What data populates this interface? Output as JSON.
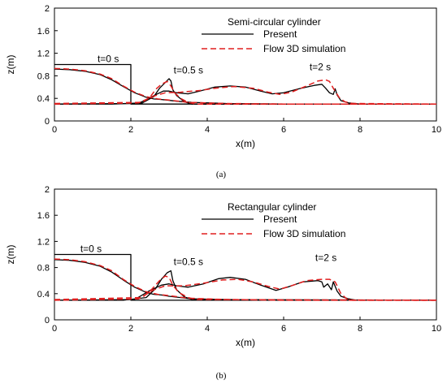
{
  "colors": {
    "present": "#000000",
    "flow3d": "#e01e1e",
    "axis": "#000000"
  },
  "chart_data": [
    {
      "type": "line",
      "caption": "(a)",
      "legend_title": "Semi-circular cylinder",
      "xlabel": "x(m)",
      "ylabel": "z(m)",
      "xlim": [
        0,
        10
      ],
      "ylim": [
        0,
        2
      ],
      "xticks": [
        "0",
        "2",
        "4",
        "6",
        "8",
        "10"
      ],
      "yticks": [
        "0",
        "0.4",
        "0.8",
        "1.2",
        "1.6",
        "2"
      ],
      "legend_placement": "top-right",
      "annotations": [
        {
          "text": "t=0 s",
          "x": 1.45,
          "y": 1.04
        },
        {
          "text": "t=0.5 s",
          "x": 3.55,
          "y": 0.84
        },
        {
          "text": "t=2 s",
          "x": 7.0,
          "y": 0.9
        }
      ],
      "series": [
        {
          "name": "Present",
          "style": "solid",
          "curves": [
            [
              [
                0,
                1.0
              ],
              [
                2,
                1.0
              ],
              [
                2,
                0.3
              ],
              [
                10,
                0.3
              ]
            ],
            [
              [
                0,
                0.92
              ],
              [
                0.4,
                0.91
              ],
              [
                0.8,
                0.88
              ],
              [
                1.2,
                0.82
              ],
              [
                1.5,
                0.73
              ],
              [
                1.8,
                0.61
              ],
              [
                2.1,
                0.5
              ],
              [
                2.4,
                0.42
              ],
              [
                2.6,
                0.39
              ],
              [
                2.8,
                0.38
              ],
              [
                2.95,
                0.37
              ],
              [
                3.2,
                0.35
              ],
              [
                3.6,
                0.33
              ],
              [
                4.5,
                0.31
              ],
              [
                6,
                0.3
              ],
              [
                10,
                0.3
              ]
            ],
            [
              [
                0,
                0.3
              ],
              [
                1.5,
                0.3
              ],
              [
                2.3,
                0.32
              ],
              [
                2.6,
                0.43
              ],
              [
                2.75,
                0.58
              ],
              [
                2.9,
                0.68
              ],
              [
                3.0,
                0.75
              ],
              [
                3.05,
                0.71
              ],
              [
                3.1,
                0.55
              ],
              [
                3.2,
                0.45
              ],
              [
                3.4,
                0.34
              ],
              [
                3.6,
                0.3
              ],
              [
                10,
                0.3
              ]
            ],
            [
              [
                0,
                0.3
              ],
              [
                2.2,
                0.31
              ],
              [
                2.55,
                0.43
              ],
              [
                2.7,
                0.48
              ],
              [
                2.85,
                0.53
              ],
              [
                3.0,
                0.53
              ],
              [
                3.2,
                0.5
              ],
              [
                3.5,
                0.48
              ],
              [
                3.8,
                0.53
              ],
              [
                4.2,
                0.6
              ],
              [
                4.6,
                0.62
              ],
              [
                5.0,
                0.6
              ],
              [
                5.4,
                0.53
              ],
              [
                5.7,
                0.48
              ],
              [
                6.0,
                0.5
              ],
              [
                6.4,
                0.57
              ],
              [
                6.8,
                0.63
              ],
              [
                7.0,
                0.65
              ],
              [
                7.1,
                0.58
              ],
              [
                7.2,
                0.5
              ],
              [
                7.3,
                0.47
              ],
              [
                7.35,
                0.57
              ],
              [
                7.4,
                0.46
              ],
              [
                7.5,
                0.36
              ],
              [
                7.7,
                0.32
              ],
              [
                8.0,
                0.3
              ],
              [
                10,
                0.3
              ]
            ]
          ]
        },
        {
          "name": "Flow 3D simulation",
          "style": "dashed",
          "curves": [
            [
              [
                0,
                0.93
              ],
              [
                0.4,
                0.92
              ],
              [
                0.8,
                0.89
              ],
              [
                1.2,
                0.83
              ],
              [
                1.5,
                0.75
              ],
              [
                1.8,
                0.62
              ],
              [
                2.1,
                0.51
              ],
              [
                2.4,
                0.43
              ],
              [
                2.7,
                0.39
              ],
              [
                3.0,
                0.37
              ],
              [
                3.5,
                0.33
              ],
              [
                4.5,
                0.31
              ],
              [
                6,
                0.3
              ],
              [
                10,
                0.3
              ]
            ],
            [
              [
                0,
                0.31
              ],
              [
                2.3,
                0.33
              ],
              [
                2.5,
                0.42
              ],
              [
                2.65,
                0.56
              ],
              [
                2.8,
                0.65
              ],
              [
                2.95,
                0.7
              ],
              [
                3.05,
                0.62
              ],
              [
                3.15,
                0.5
              ],
              [
                3.3,
                0.4
              ],
              [
                3.5,
                0.33
              ],
              [
                3.7,
                0.3
              ],
              [
                10,
                0.3
              ]
            ],
            [
              [
                0,
                0.3
              ],
              [
                2.2,
                0.32
              ],
              [
                2.6,
                0.44
              ],
              [
                2.9,
                0.5
              ],
              [
                3.3,
                0.51
              ],
              [
                3.8,
                0.54
              ],
              [
                4.2,
                0.58
              ],
              [
                4.7,
                0.61
              ],
              [
                5.2,
                0.58
              ],
              [
                5.6,
                0.51
              ],
              [
                5.9,
                0.47
              ],
              [
                6.2,
                0.51
              ],
              [
                6.6,
                0.62
              ],
              [
                6.9,
                0.71
              ],
              [
                7.1,
                0.73
              ],
              [
                7.2,
                0.7
              ],
              [
                7.3,
                0.58
              ],
              [
                7.45,
                0.42
              ],
              [
                7.6,
                0.34
              ],
              [
                7.8,
                0.31
              ],
              [
                10,
                0.3
              ]
            ]
          ]
        }
      ]
    },
    {
      "type": "line",
      "caption": "(b)",
      "legend_title": "Rectangular cylinder",
      "xlabel": "x(m)",
      "ylabel": "z(m)",
      "xlim": [
        0,
        10
      ],
      "ylim": [
        0,
        2
      ],
      "xticks": [
        "0",
        "2",
        "4",
        "6",
        "8",
        "10"
      ],
      "yticks": [
        "0",
        "0.4",
        "0.8",
        "1.2",
        "1.6",
        "2"
      ],
      "legend_placement": "top-right",
      "annotations": [
        {
          "text": "t=0 s",
          "x": 1.0,
          "y": 1.04
        },
        {
          "text": "t=0.5 s",
          "x": 3.55,
          "y": 0.84
        },
        {
          "text": "t=2 s",
          "x": 7.15,
          "y": 0.9
        }
      ],
      "series": [
        {
          "name": "Present",
          "style": "solid",
          "curves": [
            [
              [
                0,
                1.0
              ],
              [
                2,
                1.0
              ],
              [
                2,
                0.3
              ],
              [
                10,
                0.3
              ]
            ],
            [
              [
                0,
                0.92
              ],
              [
                0.4,
                0.91
              ],
              [
                0.8,
                0.88
              ],
              [
                1.2,
                0.82
              ],
              [
                1.5,
                0.73
              ],
              [
                1.8,
                0.61
              ],
              [
                2.1,
                0.5
              ],
              [
                2.4,
                0.42
              ],
              [
                2.6,
                0.39
              ],
              [
                2.8,
                0.38
              ],
              [
                3.0,
                0.36
              ],
              [
                3.3,
                0.34
              ],
              [
                3.6,
                0.32
              ],
              [
                4.5,
                0.31
              ],
              [
                6,
                0.3
              ],
              [
                10,
                0.3
              ]
            ],
            [
              [
                0,
                0.3
              ],
              [
                1.8,
                0.3
              ],
              [
                2.4,
                0.34
              ],
              [
                2.65,
                0.48
              ],
              [
                2.8,
                0.62
              ],
              [
                2.95,
                0.72
              ],
              [
                3.05,
                0.75
              ],
              [
                3.1,
                0.6
              ],
              [
                3.2,
                0.46
              ],
              [
                3.4,
                0.35
              ],
              [
                3.6,
                0.31
              ],
              [
                10,
                0.3
              ]
            ],
            [
              [
                0,
                0.3
              ],
              [
                2.1,
                0.31
              ],
              [
                2.5,
                0.45
              ],
              [
                2.8,
                0.53
              ],
              [
                3.0,
                0.55
              ],
              [
                3.2,
                0.52
              ],
              [
                3.5,
                0.5
              ],
              [
                3.9,
                0.55
              ],
              [
                4.3,
                0.63
              ],
              [
                4.6,
                0.65
              ],
              [
                5.0,
                0.62
              ],
              [
                5.4,
                0.53
              ],
              [
                5.8,
                0.45
              ],
              [
                6.1,
                0.5
              ],
              [
                6.5,
                0.58
              ],
              [
                6.9,
                0.6
              ],
              [
                7.0,
                0.58
              ],
              [
                7.05,
                0.5
              ],
              [
                7.15,
                0.55
              ],
              [
                7.25,
                0.46
              ],
              [
                7.3,
                0.58
              ],
              [
                7.4,
                0.44
              ],
              [
                7.5,
                0.36
              ],
              [
                7.7,
                0.32
              ],
              [
                7.9,
                0.3
              ],
              [
                10,
                0.3
              ]
            ]
          ]
        },
        {
          "name": "Flow 3D simulation",
          "style": "dashed",
          "curves": [
            [
              [
                0,
                0.93
              ],
              [
                0.4,
                0.92
              ],
              [
                0.8,
                0.89
              ],
              [
                1.2,
                0.83
              ],
              [
                1.5,
                0.75
              ],
              [
                1.8,
                0.62
              ],
              [
                2.1,
                0.51
              ],
              [
                2.4,
                0.43
              ],
              [
                2.7,
                0.39
              ],
              [
                3.0,
                0.37
              ],
              [
                3.5,
                0.33
              ],
              [
                4.5,
                0.31
              ],
              [
                6,
                0.3
              ],
              [
                10,
                0.3
              ]
            ],
            [
              [
                0,
                0.31
              ],
              [
                2.3,
                0.34
              ],
              [
                2.55,
                0.47
              ],
              [
                2.75,
                0.6
              ],
              [
                2.9,
                0.67
              ],
              [
                3.0,
                0.65
              ],
              [
                3.1,
                0.53
              ],
              [
                3.25,
                0.42
              ],
              [
                3.5,
                0.34
              ],
              [
                3.7,
                0.31
              ],
              [
                10,
                0.3
              ]
            ],
            [
              [
                0,
                0.3
              ],
              [
                2.2,
                0.32
              ],
              [
                2.6,
                0.46
              ],
              [
                2.9,
                0.52
              ],
              [
                3.4,
                0.52
              ],
              [
                3.9,
                0.56
              ],
              [
                4.4,
                0.61
              ],
              [
                4.8,
                0.62
              ],
              [
                5.2,
                0.58
              ],
              [
                5.6,
                0.51
              ],
              [
                5.9,
                0.47
              ],
              [
                6.2,
                0.52
              ],
              [
                6.6,
                0.6
              ],
              [
                7.0,
                0.62
              ],
              [
                7.2,
                0.62
              ],
              [
                7.35,
                0.58
              ],
              [
                7.5,
                0.4
              ],
              [
                7.65,
                0.32
              ],
              [
                7.8,
                0.3
              ],
              [
                10,
                0.3
              ]
            ]
          ]
        }
      ]
    }
  ]
}
